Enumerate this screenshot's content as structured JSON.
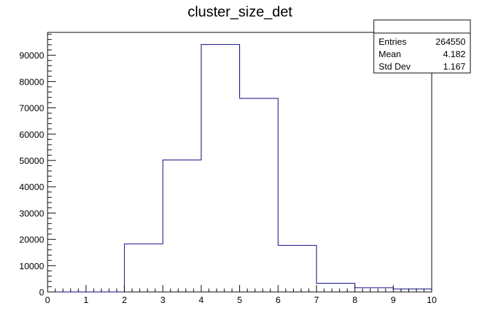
{
  "chart_data": {
    "type": "histogram",
    "title": "cluster_size_det",
    "xlabel": "",
    "ylabel": "",
    "bin_edges": [
      0,
      1,
      2,
      3,
      4,
      5,
      6,
      7,
      8,
      9,
      10
    ],
    "values": [
      0,
      0,
      18300,
      50200,
      94100,
      73600,
      17700,
      3300,
      1600,
      1100
    ],
    "xlim": [
      0,
      10
    ],
    "ylim": [
      0,
      98700
    ],
    "x_ticks": [
      "0",
      "1",
      "2",
      "3",
      "4",
      "5",
      "6",
      "7",
      "8",
      "9",
      "10"
    ],
    "y_ticks": [
      "0",
      "10000",
      "20000",
      "30000",
      "40000",
      "50000",
      "60000",
      "70000",
      "80000",
      "90000"
    ],
    "grid": false,
    "line_color": "#000080",
    "stats_box": {
      "rows": [
        {
          "label": "Entries",
          "value": "264550"
        },
        {
          "label": "Mean",
          "value": "4.182"
        },
        {
          "label": "Std Dev",
          "value": "1.167"
        }
      ]
    }
  }
}
